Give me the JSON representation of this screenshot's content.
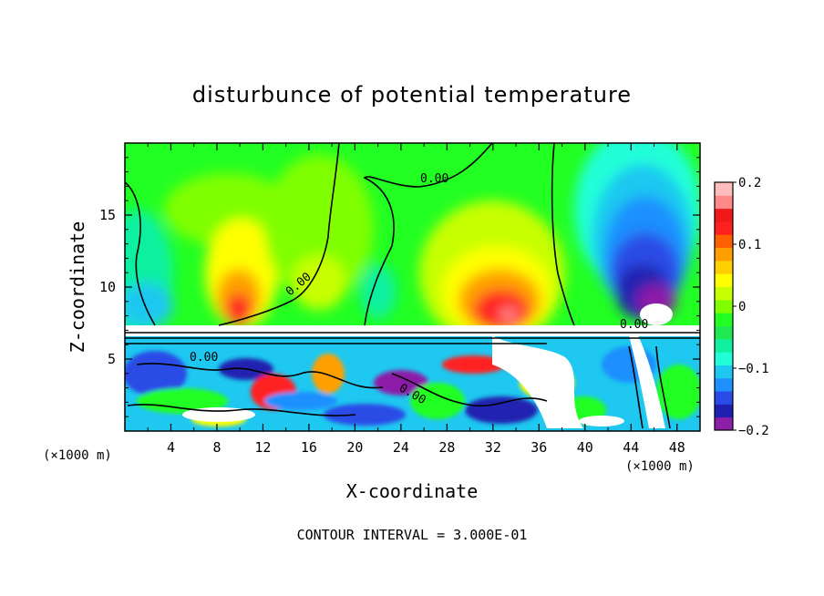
{
  "chart_data": {
    "type": "heatmap",
    "title": "disturbunce of potential temperature",
    "xlabel": "X-coordinate",
    "ylabel": "Z-coordinate",
    "x_unit_left": "(×1000 m)",
    "x_unit_right": "(×1000 m)",
    "xlim": [
      0,
      50
    ],
    "ylim": [
      0,
      20
    ],
    "xticks": [
      "4",
      "8",
      "12",
      "16",
      "20",
      "24",
      "28",
      "32",
      "36",
      "40",
      "44",
      "48"
    ],
    "xtick_values": [
      4,
      8,
      12,
      16,
      20,
      24,
      28,
      32,
      36,
      40,
      44,
      48
    ],
    "yticks": [
      "5",
      "10",
      "15"
    ],
    "ytick_values": [
      5,
      10,
      15
    ],
    "colorbar": {
      "min": -0.2,
      "max": 0.2,
      "ticks": [
        "0.2",
        "0.1",
        "0",
        "−0.1",
        "−0.2"
      ],
      "tick_values": [
        0.2,
        0.1,
        0,
        -0.1,
        -0.2
      ],
      "colors": [
        "#8c1fa8",
        "#2020b0",
        "#2a4be6",
        "#1e90ff",
        "#1ec8f0",
        "#22ffd8",
        "#10f0a0",
        "#20e850",
        "#22ff22",
        "#80ff00",
        "#c8ff00",
        "#ffff00",
        "#ffd000",
        "#ffa000",
        "#ff6000",
        "#ff2020",
        "#f01818",
        "#ff8888",
        "#ffbcbc"
      ]
    },
    "contour_labels": [
      "0.00",
      "0.00",
      "0.00",
      "0.00",
      "0.00"
    ],
    "annotation": "CONTOUR INTERVAL = 3.000E-01"
  }
}
